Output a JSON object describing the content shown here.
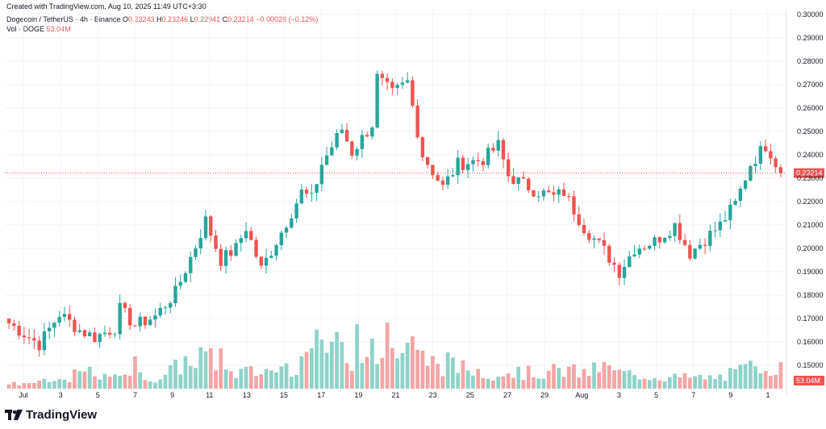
{
  "header": {
    "created": "Created with TradingView.com, Aug 10, 2025 11:49 UTC+3:30",
    "symbol": "Dogecoin / TetherUS · 4h · Binance",
    "o_label": "O",
    "o_value": "0.23243",
    "h_label": "H",
    "h_value": "0.23246",
    "l_label": "L",
    "l_value": "0.22941",
    "c_label": "C",
    "c_value": "0.23214",
    "change": "−0.00028 (−0.12%)",
    "vol_label": "Vol · DOGE",
    "vol_value": "53.04M"
  },
  "footer": {
    "brand": "TradingView"
  },
  "colors": {
    "up": "#26a69a",
    "down": "#ef5350",
    "vol_up": "#8fd3c8",
    "vol_down": "#f4a5a5",
    "grid": "#f0f3fa"
  },
  "chart_data": {
    "type": "candlestick",
    "title": "Dogecoin / TetherUS · 4h · Binance",
    "ylim": [
      0.14,
      0.302
    ],
    "y_ticks": [
      "0.30000",
      "0.29000",
      "0.28000",
      "0.27000",
      "0.26000",
      "0.25000",
      "0.24000",
      "0.23000",
      "0.22000",
      "0.21000",
      "0.20000",
      "0.19000",
      "0.18000",
      "0.17000",
      "0.16000",
      "0.15000"
    ],
    "x_ticks": [
      "Jul",
      "3",
      "5",
      "7",
      "9",
      "11",
      "13",
      "15",
      "17",
      "19",
      "21",
      "23",
      "25",
      "27",
      "29",
      "Aug",
      "3",
      "5",
      "7",
      "9",
      "1"
    ],
    "last_price": 0.23214,
    "last_price_label": "0.23214",
    "last_volume_label": "53.04M",
    "price_path": [
      [
        0,
        0.168
      ],
      [
        6,
        0.159
      ],
      [
        10,
        0.172
      ],
      [
        14,
        0.165
      ],
      [
        17,
        0.162
      ],
      [
        21,
        0.166
      ],
      [
        22,
        0.174
      ],
      [
        25,
        0.167
      ],
      [
        29,
        0.171
      ],
      [
        33,
        0.181
      ],
      [
        37,
        0.201
      ],
      [
        39,
        0.212
      ],
      [
        42,
        0.195
      ],
      [
        45,
        0.2
      ],
      [
        47,
        0.209
      ],
      [
        50,
        0.191
      ],
      [
        54,
        0.207
      ],
      [
        58,
        0.224
      ],
      [
        60,
        0.221
      ],
      [
        62,
        0.236
      ],
      [
        66,
        0.251
      ],
      [
        68,
        0.241
      ],
      [
        72,
        0.253
      ],
      [
        73,
        0.273
      ],
      [
        76,
        0.266
      ],
      [
        79,
        0.271
      ],
      [
        82,
        0.24
      ],
      [
        86,
        0.226
      ],
      [
        89,
        0.236
      ],
      [
        94,
        0.238
      ],
      [
        97,
        0.244
      ],
      [
        99,
        0.231
      ],
      [
        104,
        0.225
      ],
      [
        108,
        0.222
      ],
      [
        110,
        0.224
      ],
      [
        114,
        0.209
      ],
      [
        118,
        0.199
      ],
      [
        121,
        0.19
      ],
      [
        124,
        0.2
      ],
      [
        128,
        0.203
      ],
      [
        132,
        0.21
      ],
      [
        135,
        0.198
      ],
      [
        138,
        0.204
      ],
      [
        141,
        0.21
      ],
      [
        144,
        0.219
      ],
      [
        147,
        0.236
      ],
      [
        150,
        0.244
      ],
      [
        151,
        0.241
      ],
      [
        153,
        0.2321
      ]
    ],
    "volume_path": [
      [
        0,
        6
      ],
      [
        10,
        10
      ],
      [
        15,
        22
      ],
      [
        20,
        12
      ],
      [
        22,
        28
      ],
      [
        25,
        16
      ],
      [
        30,
        14
      ],
      [
        35,
        35
      ],
      [
        39,
        45
      ],
      [
        42,
        20
      ],
      [
        50,
        22
      ],
      [
        56,
        30
      ],
      [
        60,
        45
      ],
      [
        62,
        60
      ],
      [
        65,
        52
      ],
      [
        68,
        40
      ],
      [
        72,
        70
      ],
      [
        73,
        35
      ],
      [
        76,
        55
      ],
      [
        79,
        45
      ],
      [
        82,
        40
      ],
      [
        86,
        30
      ],
      [
        92,
        25
      ],
      [
        96,
        20
      ],
      [
        99,
        22
      ],
      [
        104,
        20
      ],
      [
        110,
        24
      ],
      [
        114,
        20
      ],
      [
        118,
        28
      ],
      [
        121,
        20
      ],
      [
        130,
        15
      ],
      [
        140,
        14
      ],
      [
        144,
        20
      ],
      [
        150,
        35
      ],
      [
        153,
        25
      ]
    ],
    "volume_peaks": [
      [
        69,
        80
      ],
      [
        75,
        82
      ],
      [
        80,
        65
      ],
      [
        66,
        58
      ],
      [
        72,
        62
      ],
      [
        60,
        50
      ],
      [
        79,
        57
      ],
      [
        42,
        50
      ],
      [
        25,
        40
      ],
      [
        87,
        45
      ],
      [
        58,
        40
      ]
    ]
  }
}
